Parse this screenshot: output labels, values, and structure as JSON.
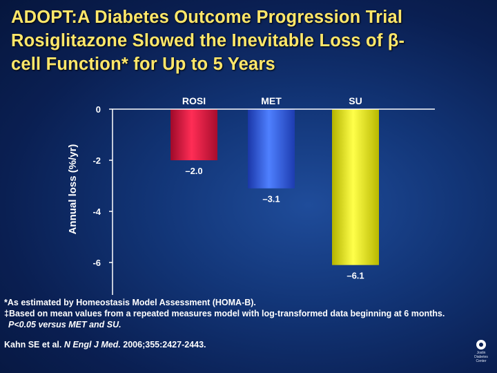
{
  "title_lines": [
    "ADOPT:A Diabetes Outcome Progression Trial",
    "Rosiglitazone Slowed the Inevitable Loss of β-",
    "cell Function* for Up to 5 Years"
  ],
  "chart_data": {
    "type": "bar",
    "categories": [
      "ROSI",
      "MET",
      "SU"
    ],
    "values": [
      -2.0,
      -3.1,
      -6.1
    ],
    "value_labels": [
      "–2.0",
      "–3.1",
      "–6.1"
    ],
    "colors": [
      "#e8163f",
      "#2e5ef0",
      "#f2f21c"
    ],
    "ylabel": "Annual loss (%/yr)",
    "ylim": [
      -7,
      0
    ],
    "yticks": [
      0,
      -2,
      -4,
      -6
    ],
    "ytick_labels": [
      "0",
      "-2",
      "-4",
      "-6"
    ],
    "category_axis": "top"
  },
  "footnotes": [
    "*As estimated by Homeostasis Model Assessment (HOMA-B).",
    "‡Based on mean values from a repeated measures model with log-transformed data beginning at 6 months.",
    "P<0.05 versus MET and SU."
  ],
  "citation": {
    "authors": "Kahn SE et al.",
    "journal": "N Engl J Med.",
    "details": "2006;355:2427-2443."
  },
  "logo": {
    "lines": [
      "Joslin",
      "Diabetes",
      "Center"
    ]
  }
}
